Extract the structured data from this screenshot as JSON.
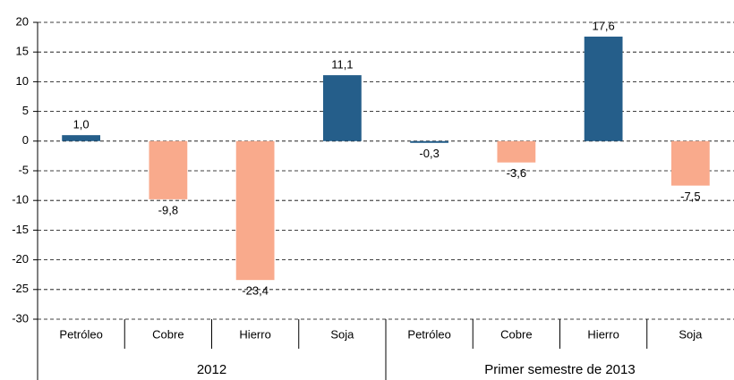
{
  "chart_data": {
    "type": "bar",
    "categories": [
      "Petróleo",
      "Cobre",
      "Hierro",
      "Soja",
      "Petróleo",
      "Cobre",
      "Hierro",
      "Soja"
    ],
    "groups": [
      "2012",
      "Primer semestre de 2013"
    ],
    "values": [
      1.0,
      -9.8,
      -23.4,
      11.1,
      -0.3,
      -3.6,
      17.6,
      -7.5
    ],
    "value_labels": [
      "1,0",
      "-9,8",
      "-23,4",
      "11,1",
      "-0,3",
      "-3,6",
      "17,6",
      "-7,5"
    ],
    "colors": [
      "#255e8a",
      "#f9aa8c",
      "#f9aa8c",
      "#255e8a",
      "#255e8a",
      "#f9aa8c",
      "#255e8a",
      "#f9aa8c"
    ],
    "ylim": [
      -30,
      20
    ],
    "yticks": [
      -30,
      -25,
      -20,
      -15,
      -10,
      -5,
      0,
      5,
      10,
      15,
      20
    ],
    "grid": true
  }
}
